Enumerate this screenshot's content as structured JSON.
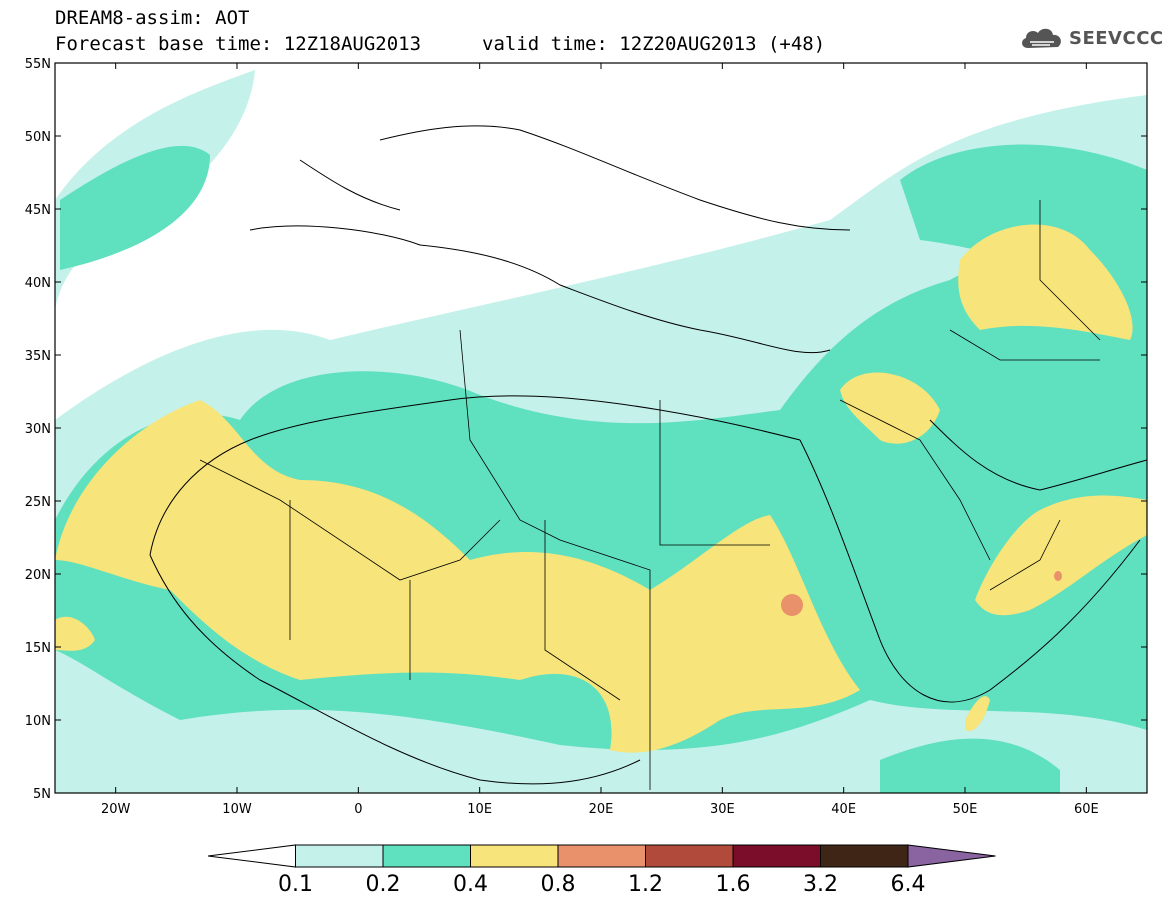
{
  "header": {
    "title": "DREAM8-assim: AOT",
    "base_time": "Forecast base time: 12Z18AUG2013",
    "valid_time": "valid time: 12Z20AUG2013 (+48)"
  },
  "logo": {
    "text": "SEEVCCC",
    "icon": "cloud-icon"
  },
  "map": {
    "lon_range": [
      -25,
      65
    ],
    "lat_range": [
      5,
      55
    ],
    "lat_ticks": [
      "5N",
      "10N",
      "15N",
      "20N",
      "25N",
      "30N",
      "35N",
      "40N",
      "45N",
      "50N",
      "55N"
    ],
    "lon_ticks": [
      "20W",
      "10W",
      "0",
      "10E",
      "20E",
      "30E",
      "40E",
      "50E",
      "60E"
    ],
    "background": "#ffffff",
    "border_color": "#000000"
  },
  "colorbar": {
    "levels": [
      "0.1",
      "0.2",
      "0.4",
      "0.8",
      "1.2",
      "1.6",
      "3.2",
      "6.4"
    ],
    "colors": [
      "#c4f1ea",
      "#5fe0bf",
      "#f7e47a",
      "#e9916b",
      "#b24a3c",
      "#7b0d2a",
      "#3e2515",
      "#8a64a0"
    ],
    "under_color": "#ffffff"
  }
}
